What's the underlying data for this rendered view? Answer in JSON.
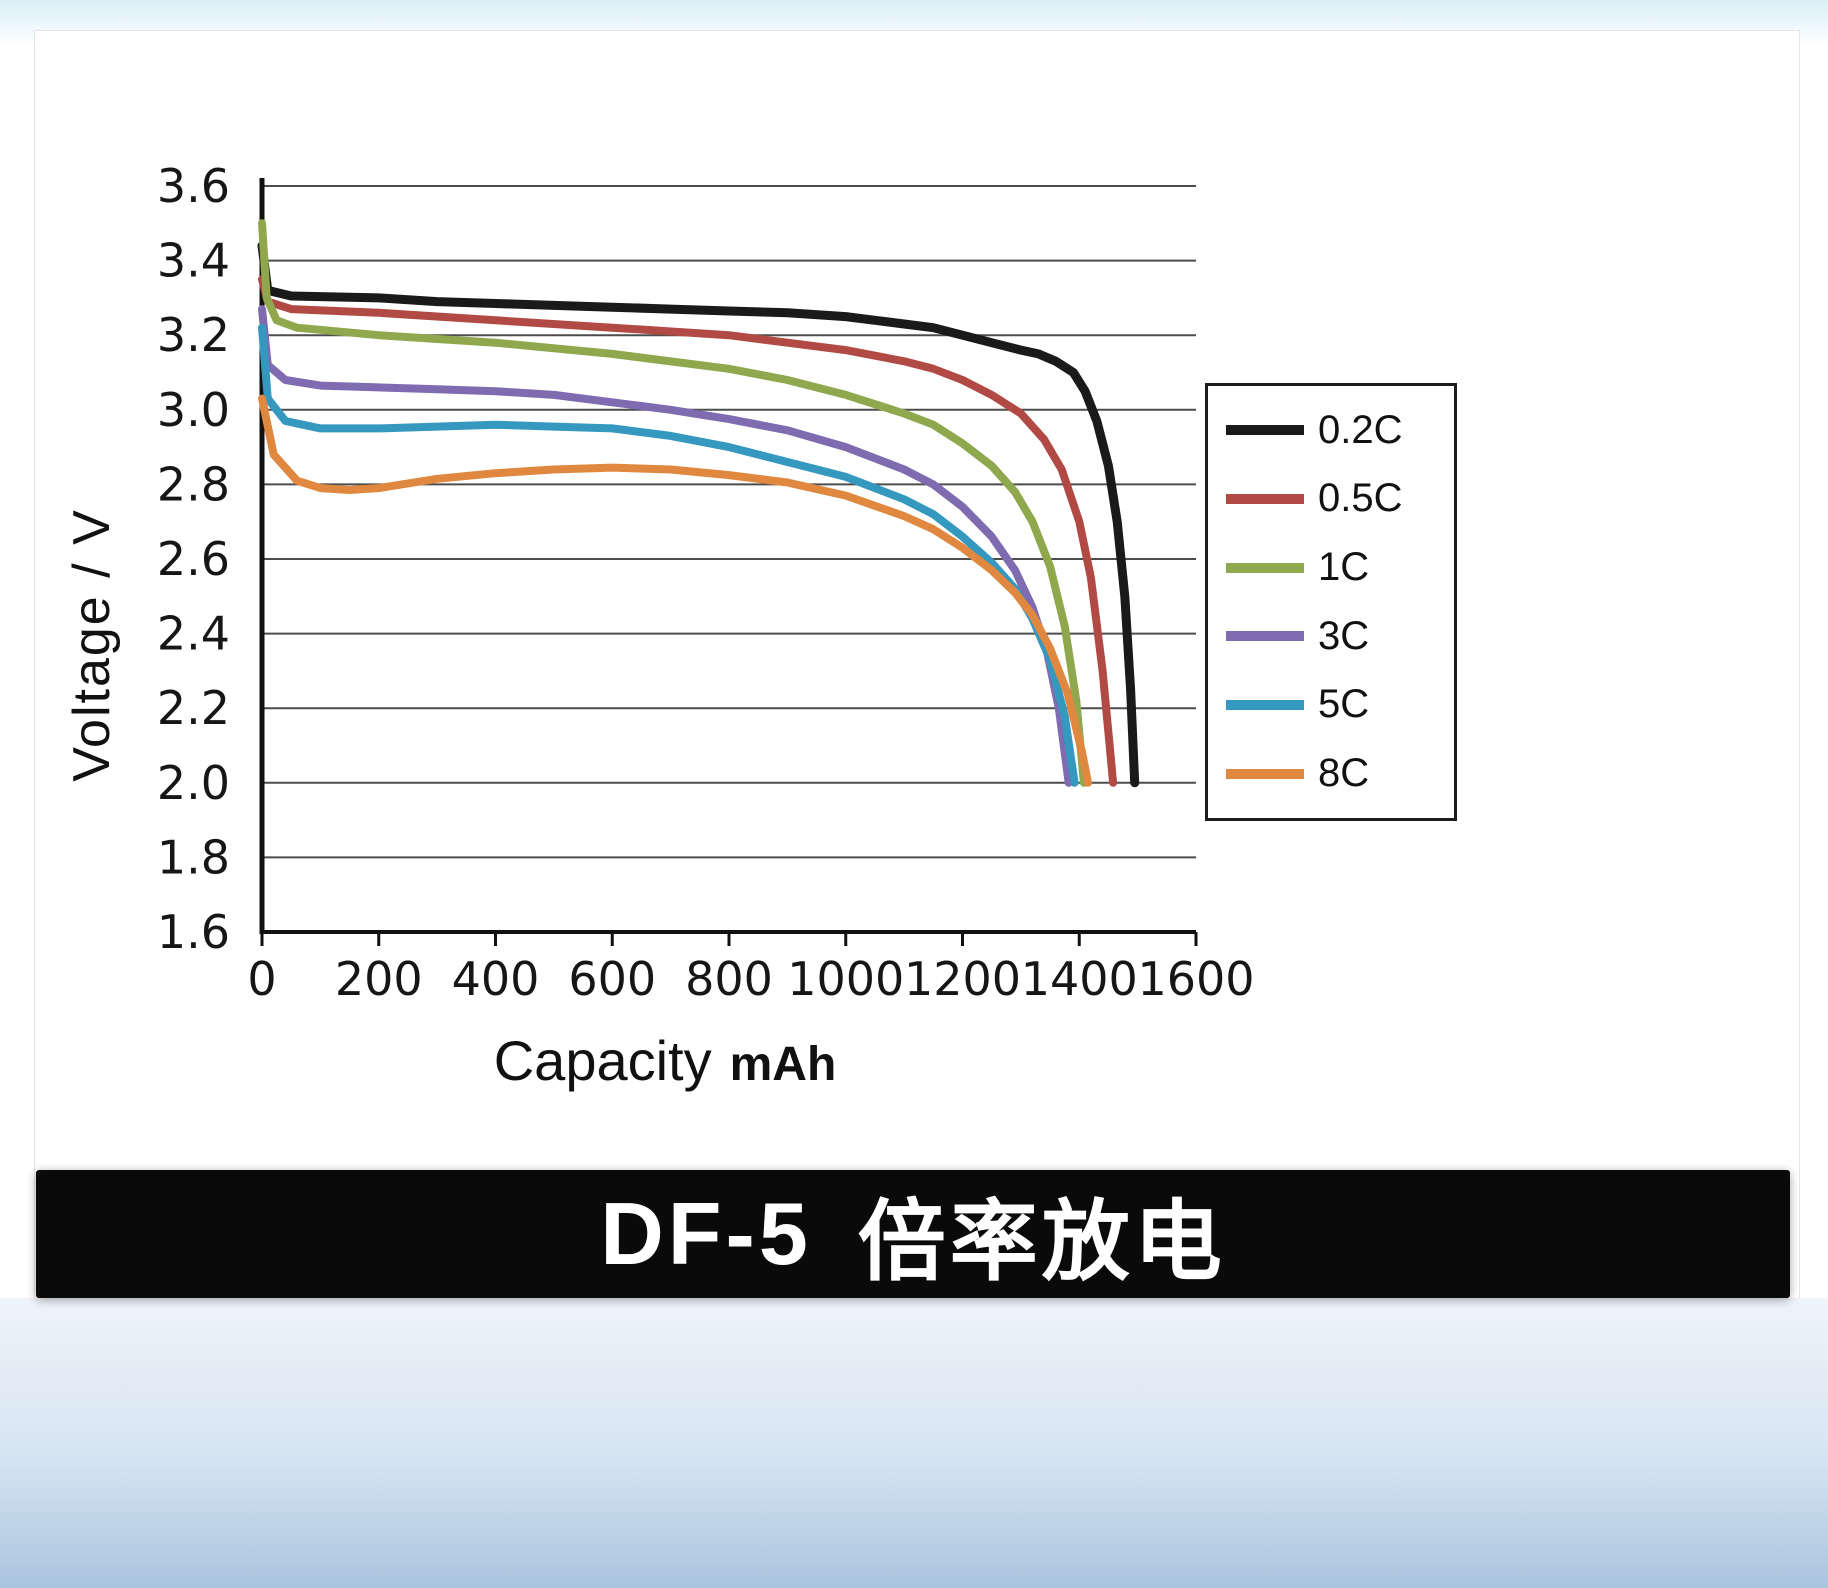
{
  "page": {
    "bottom_title_left": "DF-5",
    "bottom_title_right": "倍率放电"
  },
  "chart_data": {
    "type": "line",
    "title": "DF-5 倍率放电",
    "xlabel": "Capacity",
    "xlabel_unit": "mAh",
    "ylabel": "Voltage / V",
    "xlim": [
      0,
      1600
    ],
    "ylim": [
      1.6,
      3.6
    ],
    "xticks": [
      0,
      200,
      400,
      600,
      800,
      1000,
      1200,
      1400,
      1600
    ],
    "yticks": [
      1.6,
      1.8,
      2.0,
      2.2,
      2.4,
      2.6,
      2.8,
      3.0,
      3.2,
      3.4,
      3.6
    ],
    "grid": "horizontal",
    "legend_position": "right",
    "series": [
      {
        "name": "0.2C",
        "color": "#1a1a1a",
        "width": 9,
        "points": [
          [
            0,
            3.44
          ],
          [
            10,
            3.32
          ],
          [
            50,
            3.305
          ],
          [
            200,
            3.3
          ],
          [
            300,
            3.29
          ],
          [
            400,
            3.285
          ],
          [
            500,
            3.28
          ],
          [
            600,
            3.275
          ],
          [
            700,
            3.27
          ],
          [
            800,
            3.265
          ],
          [
            900,
            3.26
          ],
          [
            1000,
            3.25
          ],
          [
            1050,
            3.24
          ],
          [
            1100,
            3.23
          ],
          [
            1150,
            3.22
          ],
          [
            1200,
            3.2
          ],
          [
            1250,
            3.18
          ],
          [
            1300,
            3.16
          ],
          [
            1330,
            3.15
          ],
          [
            1360,
            3.13
          ],
          [
            1390,
            3.1
          ],
          [
            1410,
            3.05
          ],
          [
            1430,
            2.97
          ],
          [
            1450,
            2.85
          ],
          [
            1465,
            2.7
          ],
          [
            1478,
            2.5
          ],
          [
            1488,
            2.25
          ],
          [
            1495,
            2.0
          ]
        ]
      },
      {
        "name": "0.5C",
        "color": "#b14a44",
        "width": 8,
        "points": [
          [
            0,
            3.35
          ],
          [
            10,
            3.29
          ],
          [
            50,
            3.27
          ],
          [
            200,
            3.26
          ],
          [
            400,
            3.24
          ],
          [
            600,
            3.22
          ],
          [
            800,
            3.2
          ],
          [
            900,
            3.18
          ],
          [
            1000,
            3.16
          ],
          [
            1100,
            3.13
          ],
          [
            1150,
            3.11
          ],
          [
            1200,
            3.08
          ],
          [
            1250,
            3.04
          ],
          [
            1300,
            2.99
          ],
          [
            1340,
            2.92
          ],
          [
            1370,
            2.84
          ],
          [
            1400,
            2.7
          ],
          [
            1420,
            2.55
          ],
          [
            1440,
            2.3
          ],
          [
            1455,
            2.05
          ],
          [
            1458,
            2.0
          ]
        ]
      },
      {
        "name": "1C",
        "color": "#8fa84e",
        "width": 8,
        "points": [
          [
            0,
            3.5
          ],
          [
            8,
            3.3
          ],
          [
            25,
            3.24
          ],
          [
            60,
            3.22
          ],
          [
            200,
            3.2
          ],
          [
            400,
            3.18
          ],
          [
            600,
            3.15
          ],
          [
            800,
            3.11
          ],
          [
            900,
            3.08
          ],
          [
            1000,
            3.04
          ],
          [
            1100,
            2.99
          ],
          [
            1150,
            2.96
          ],
          [
            1200,
            2.91
          ],
          [
            1250,
            2.85
          ],
          [
            1290,
            2.78
          ],
          [
            1320,
            2.7
          ],
          [
            1350,
            2.58
          ],
          [
            1375,
            2.42
          ],
          [
            1395,
            2.22
          ],
          [
            1408,
            2.0
          ]
        ]
      },
      {
        "name": "3C",
        "color": "#7e6bb0",
        "width": 8,
        "points": [
          [
            0,
            3.27
          ],
          [
            10,
            3.12
          ],
          [
            40,
            3.08
          ],
          [
            100,
            3.065
          ],
          [
            200,
            3.06
          ],
          [
            300,
            3.055
          ],
          [
            400,
            3.05
          ],
          [
            500,
            3.04
          ],
          [
            600,
            3.02
          ],
          [
            700,
            3.0
          ],
          [
            800,
            2.975
          ],
          [
            900,
            2.945
          ],
          [
            1000,
            2.9
          ],
          [
            1100,
            2.84
          ],
          [
            1150,
            2.8
          ],
          [
            1200,
            2.74
          ],
          [
            1250,
            2.66
          ],
          [
            1290,
            2.57
          ],
          [
            1320,
            2.47
          ],
          [
            1345,
            2.35
          ],
          [
            1365,
            2.2
          ],
          [
            1382,
            2.0
          ]
        ]
      },
      {
        "name": "5C",
        "color": "#3598bf",
        "width": 8,
        "points": [
          [
            0,
            3.22
          ],
          [
            10,
            3.03
          ],
          [
            40,
            2.97
          ],
          [
            100,
            2.95
          ],
          [
            200,
            2.95
          ],
          [
            300,
            2.955
          ],
          [
            400,
            2.96
          ],
          [
            500,
            2.955
          ],
          [
            600,
            2.95
          ],
          [
            700,
            2.93
          ],
          [
            800,
            2.9
          ],
          [
            900,
            2.86
          ],
          [
            1000,
            2.82
          ],
          [
            1100,
            2.76
          ],
          [
            1150,
            2.72
          ],
          [
            1200,
            2.66
          ],
          [
            1250,
            2.59
          ],
          [
            1290,
            2.52
          ],
          [
            1320,
            2.44
          ],
          [
            1350,
            2.33
          ],
          [
            1375,
            2.18
          ],
          [
            1392,
            2.0
          ]
        ]
      },
      {
        "name": "8C",
        "color": "#e0883f",
        "width": 8,
        "points": [
          [
            0,
            3.03
          ],
          [
            20,
            2.88
          ],
          [
            60,
            2.81
          ],
          [
            100,
            2.79
          ],
          [
            150,
            2.785
          ],
          [
            200,
            2.79
          ],
          [
            300,
            2.815
          ],
          [
            400,
            2.83
          ],
          [
            500,
            2.84
          ],
          [
            600,
            2.845
          ],
          [
            700,
            2.84
          ],
          [
            800,
            2.825
          ],
          [
            900,
            2.805
          ],
          [
            1000,
            2.77
          ],
          [
            1100,
            2.715
          ],
          [
            1150,
            2.68
          ],
          [
            1200,
            2.63
          ],
          [
            1250,
            2.57
          ],
          [
            1290,
            2.51
          ],
          [
            1320,
            2.45
          ],
          [
            1350,
            2.36
          ],
          [
            1380,
            2.24
          ],
          [
            1405,
            2.08
          ],
          [
            1415,
            2.0
          ]
        ]
      }
    ]
  }
}
